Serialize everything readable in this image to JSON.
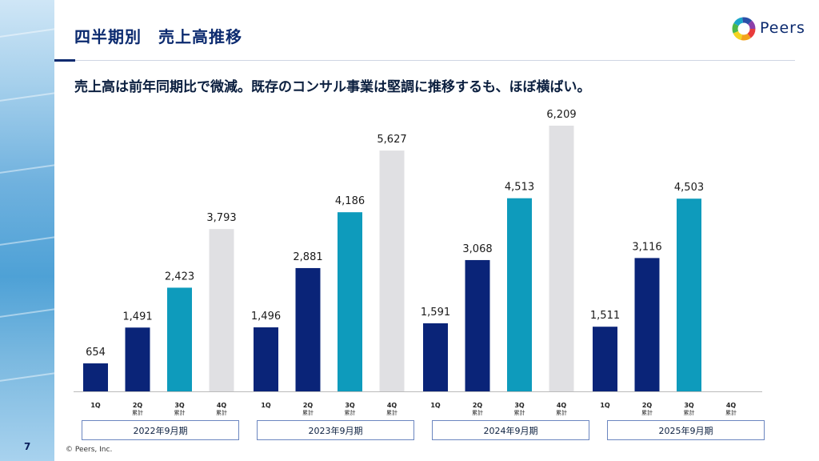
{
  "header": {
    "title": "四半期別　売上高推移",
    "logo_text": "Peers"
  },
  "headline": "売上高は前年同期比で微減。既存のコンサル事業は堅調に推移するも、ほぼ横ばい。",
  "footer": {
    "page_number": "7",
    "copyright": "© Peers, Inc."
  },
  "colors": {
    "q1": "#0a2478",
    "q2": "#0a2478",
    "q3": "#0e9bbc",
    "q4": "#e0e0e3",
    "navy": "#0b2a6f"
  },
  "chart_data": {
    "type": "bar",
    "categories": [
      {
        "main": "1Q",
        "sub": ""
      },
      {
        "main": "2Q",
        "sub": "累計"
      },
      {
        "main": "3Q",
        "sub": "累計"
      },
      {
        "main": "4Q",
        "sub": "累計"
      }
    ],
    "groups": [
      {
        "label": "2022年9月期",
        "values": [
          654,
          1491,
          2423,
          3793
        ]
      },
      {
        "label": "2023年9月期",
        "values": [
          1496,
          2881,
          4186,
          5627
        ]
      },
      {
        "label": "2024年9月期",
        "values": [
          1591,
          3068,
          4513,
          6209
        ]
      },
      {
        "label": "2025年9月期",
        "values": [
          1511,
          3116,
          4503,
          null
        ]
      }
    ],
    "ylim": [
      0,
      6800
    ]
  }
}
